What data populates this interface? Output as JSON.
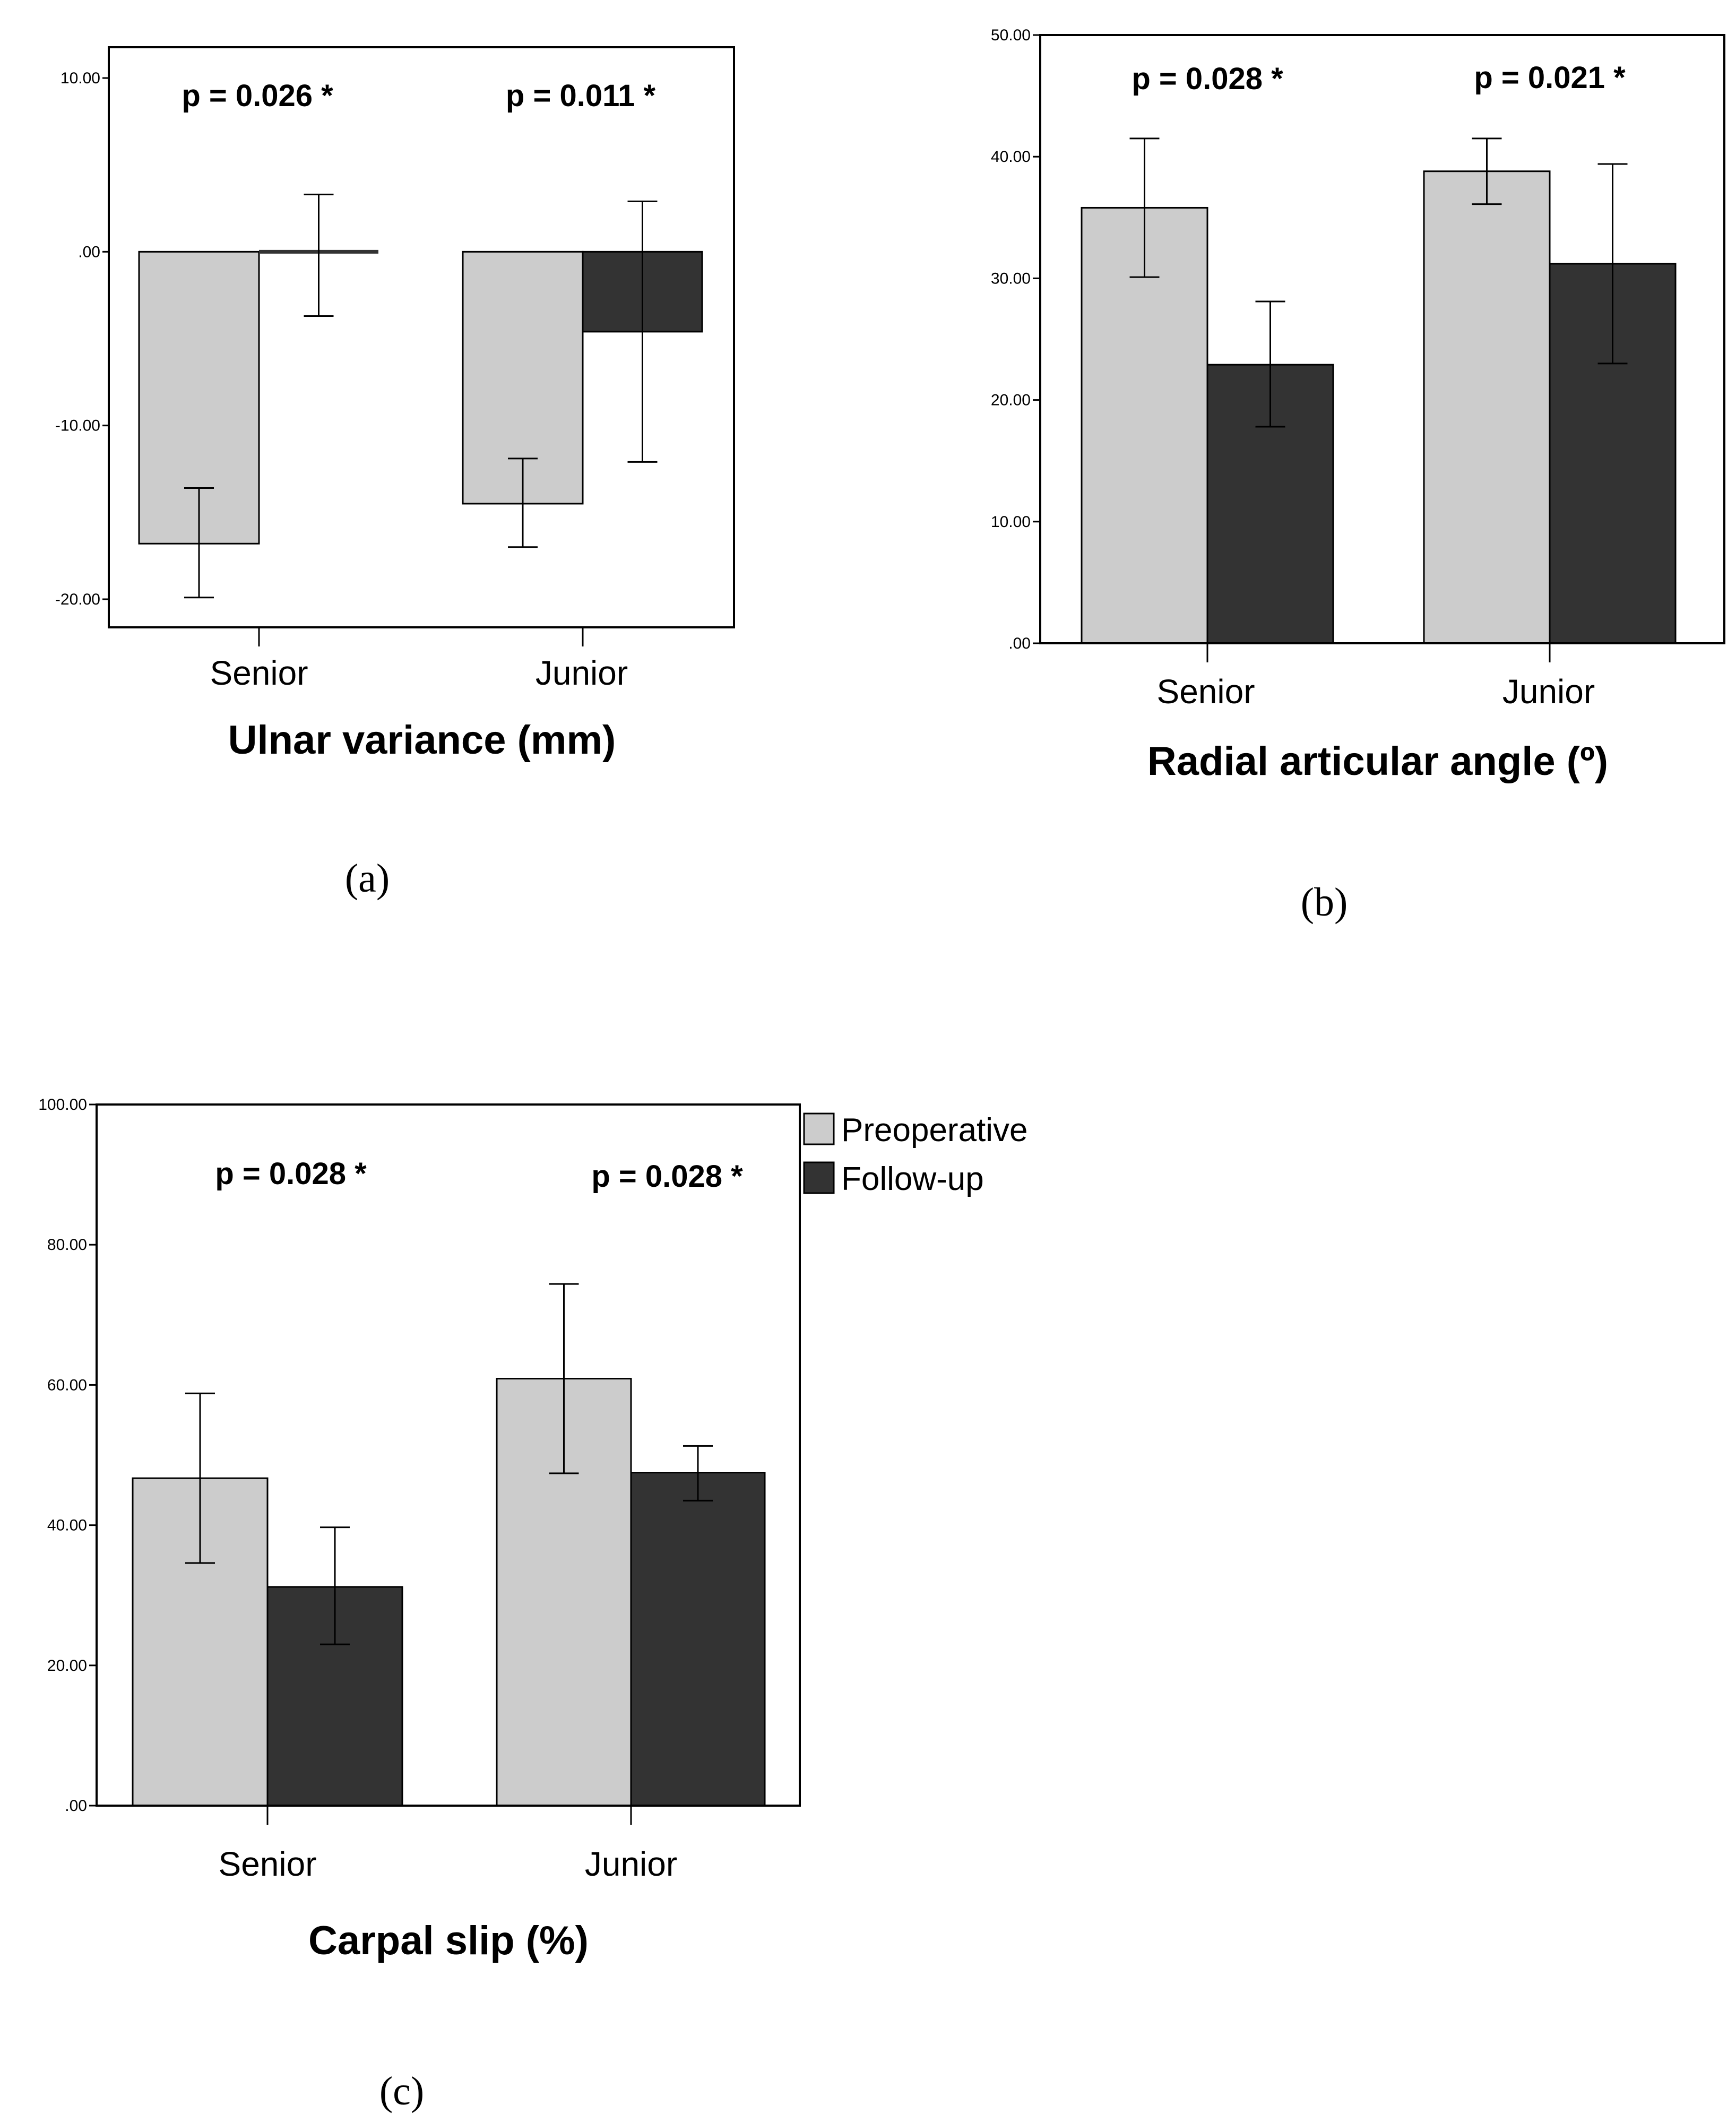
{
  "colors": {
    "preoperative": "#cccccc",
    "followup": "#333333",
    "frame": "#000000"
  },
  "legend": {
    "placement": "right of panel c",
    "entries": [
      "Preoperative",
      "Follow-up"
    ]
  },
  "chart_data": [
    {
      "panel": "(a)",
      "type": "bar",
      "xlabel": "Ulnar variance (mm)",
      "ylabel": "",
      "categories": [
        "Senior",
        "Junior"
      ],
      "ylim": [
        -21.5,
        11.5
      ],
      "yticks": [
        10,
        0,
        -10,
        -20
      ],
      "ytick_labels": [
        "10.00",
        ".00",
        "-10.00",
        "-20.00"
      ],
      "series": [
        {
          "name": "Preoperative",
          "values": [
            -16.8,
            -14.5
          ],
          "err_low": [
            -19.9,
            -17.0
          ],
          "err_high": [
            -13.6,
            -11.9
          ]
        },
        {
          "name": "Follow-up",
          "values": [
            0,
            -4.6
          ],
          "err_low": [
            -3.7,
            -12.1
          ],
          "err_high": [
            3.3,
            2.9
          ]
        }
      ],
      "annotations": [
        "p = 0.026 *",
        "p = 0.011 *"
      ]
    },
    {
      "panel": "(b)",
      "type": "bar",
      "xlabel": "Radial articular angle (º)",
      "ylabel": "",
      "categories": [
        "Senior",
        "Junior"
      ],
      "ylim": [
        0,
        50
      ],
      "yticks": [
        50,
        40,
        30,
        20,
        10,
        0
      ],
      "ytick_labels": [
        "50.00",
        "40.00",
        "30.00",
        "20.00",
        "10.00",
        ".00"
      ],
      "series": [
        {
          "name": "Preoperative",
          "values": [
            35.8,
            38.8
          ],
          "err_low": [
            30.1,
            36.1
          ],
          "err_high": [
            41.5,
            41.5
          ]
        },
        {
          "name": "Follow-up",
          "values": [
            22.9,
            31.2
          ],
          "err_low": [
            17.8,
            23.0
          ],
          "err_high": [
            28.1,
            39.4
          ]
        }
      ],
      "annotations": [
        "p = 0.028 *",
        "p = 0.021 *"
      ]
    },
    {
      "panel": "(c)",
      "type": "bar",
      "xlabel": "Carpal slip (%)",
      "ylabel": "",
      "categories": [
        "Senior",
        "Junior"
      ],
      "ylim": [
        0,
        100
      ],
      "yticks": [
        100,
        80,
        60,
        40,
        20,
        0
      ],
      "ytick_labels": [
        "100.00",
        "80.00",
        "60.00",
        "40.00",
        "20.00",
        ".00"
      ],
      "series": [
        {
          "name": "Preoperative",
          "values": [
            46.7,
            60.9
          ],
          "err_low": [
            34.6,
            47.4
          ],
          "err_high": [
            58.8,
            74.4
          ]
        },
        {
          "name": "Follow-up",
          "values": [
            31.2,
            47.5
          ],
          "err_low": [
            23.0,
            43.5
          ],
          "err_high": [
            39.7,
            51.3
          ]
        }
      ],
      "annotations": [
        "p = 0.028 *",
        "p = 0.028 *"
      ]
    }
  ]
}
